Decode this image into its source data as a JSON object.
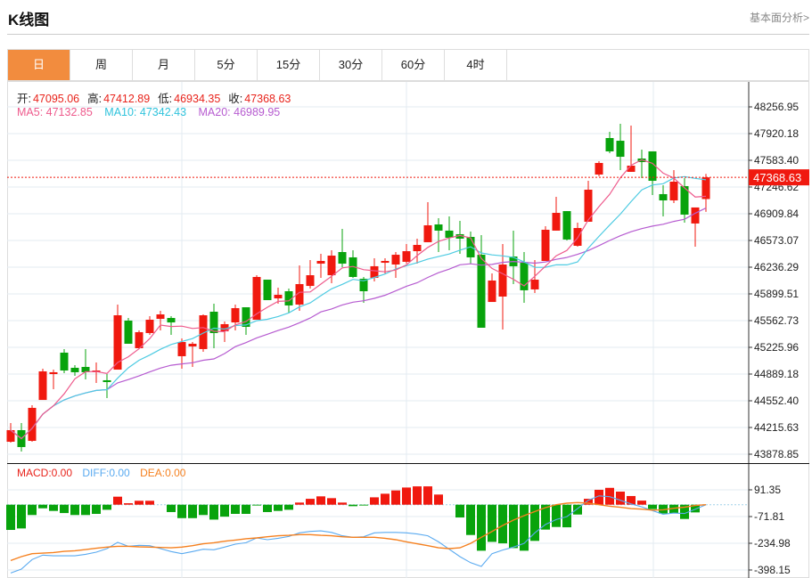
{
  "header": {
    "title": "K线图",
    "more_link": "基本面分析>"
  },
  "tabs": [
    {
      "label": "日",
      "active": true
    },
    {
      "label": "周"
    },
    {
      "label": "月"
    },
    {
      "label": "5分"
    },
    {
      "label": "15分"
    },
    {
      "label": "30分"
    },
    {
      "label": "60分"
    },
    {
      "label": "4时"
    }
  ],
  "ohlc_info": {
    "open_label": "开:",
    "open": "47095.06",
    "high_label": "高:",
    "high": "47412.89",
    "low_label": "低:",
    "low": "46934.35",
    "close_label": "收:",
    "close": "47368.63"
  },
  "ma_info": {
    "ma5": "MA5: 47132.85",
    "ma10": "MA10: 47342.43",
    "ma20": "MA20: 46989.95"
  },
  "macd_info": {
    "macd": "MACD:0.00",
    "diff": "DIFF:0.00",
    "dea": "DEA:0.00"
  },
  "colors": {
    "up": "#f0190f",
    "down": "#08a30c",
    "ma5": "#ee5a8c",
    "ma10": "#4ecbe2",
    "ma20": "#b65bd0",
    "diff": "#5aaaf0",
    "dea": "#f5801f",
    "accent": "#f28c3e"
  },
  "chart_data": {
    "type": "candlestick",
    "current_price": "47368.63",
    "price_ticks": [
      "48256.95",
      "47920.18",
      "47583.40",
      "47246.62",
      "46909.84",
      "46573.07",
      "46236.29",
      "45899.51",
      "45562.73",
      "45225.96",
      "44889.18",
      "44552.40",
      "44215.63",
      "43878.85"
    ],
    "price_range": [
      43878.85,
      48256.95
    ],
    "macd_ticks": [
      "91.35",
      "-71.81",
      "-234.98",
      "-398.15"
    ],
    "candles": [
      [
        44036,
        44272,
        44025,
        44182
      ],
      [
        44182,
        44272,
        43913,
        43969
      ],
      [
        44047,
        44496,
        44036,
        44463
      ],
      [
        44563,
        44957,
        44563,
        44923
      ],
      [
        44889,
        44945,
        44698,
        44912
      ],
      [
        45159,
        45204,
        44900,
        44934
      ],
      [
        44968,
        45001,
        44867,
        44912
      ],
      [
        44979,
        45204,
        44822,
        44912
      ],
      [
        44912,
        45035,
        44777,
        44934
      ],
      [
        44811,
        44889,
        44586,
        44788
      ],
      [
        44945,
        45765,
        44945,
        45630
      ],
      [
        45563,
        45596,
        45271,
        45271
      ],
      [
        45215,
        45439,
        45215,
        45417
      ],
      [
        45406,
        45619,
        45383,
        45574
      ],
      [
        45585,
        45686,
        45439,
        45641
      ],
      [
        45596,
        45619,
        45383,
        45540
      ],
      [
        45114,
        45338,
        44957,
        45293
      ],
      [
        45237,
        45293,
        44979,
        45271
      ],
      [
        45204,
        45641,
        45170,
        45630
      ],
      [
        45675,
        45776,
        45215,
        45406
      ],
      [
        45428,
        45552,
        45293,
        45518
      ],
      [
        45540,
        45765,
        45439,
        45720
      ],
      [
        45731,
        45731,
        45383,
        45484
      ],
      [
        45574,
        46135,
        45574,
        46113
      ],
      [
        46079,
        46079,
        45821,
        45821
      ],
      [
        45843,
        45978,
        45776,
        45888
      ],
      [
        45933,
        45967,
        45664,
        45754
      ],
      [
        45765,
        46259,
        45686,
        46023
      ],
      [
        46000,
        46326,
        45967,
        46135
      ],
      [
        46281,
        46405,
        46102,
        46315
      ],
      [
        46135,
        46450,
        46034,
        46382
      ],
      [
        46427,
        46719,
        46236,
        46281
      ],
      [
        46360,
        46450,
        46102,
        46113
      ],
      [
        46090,
        46113,
        45787,
        45933
      ],
      [
        46102,
        46349,
        46057,
        46248
      ],
      [
        46292,
        46349,
        46158,
        46315
      ],
      [
        46270,
        46427,
        46102,
        46393
      ],
      [
        46304,
        46528,
        46281,
        46438
      ],
      [
        46438,
        46596,
        46281,
        46517
      ],
      [
        46551,
        47056,
        46551,
        46764
      ],
      [
        46775,
        46854,
        46427,
        46697
      ],
      [
        46697,
        46876,
        46450,
        46607
      ],
      [
        46652,
        46820,
        46405,
        46596
      ],
      [
        46618,
        46685,
        46281,
        46360
      ],
      [
        46393,
        46641,
        45473,
        45473
      ],
      [
        45798,
        46158,
        45798,
        46068
      ],
      [
        45866,
        46528,
        45450,
        46270
      ],
      [
        46371,
        46697,
        46023,
        46248
      ],
      [
        46292,
        46427,
        45787,
        45945
      ],
      [
        45956,
        46326,
        45911,
        46079
      ],
      [
        46315,
        46753,
        46315,
        46708
      ],
      [
        46697,
        47123,
        46697,
        46921
      ],
      [
        46943,
        46943,
        46573,
        46585
      ],
      [
        46506,
        46798,
        46495,
        46730
      ],
      [
        46809,
        47325,
        46809,
        47213
      ],
      [
        47404,
        47572,
        47381,
        47550
      ],
      [
        47864,
        47943,
        47673,
        47696
      ],
      [
        47830,
        48044,
        47460,
        47628
      ],
      [
        47438,
        48021,
        47438,
        47516
      ],
      [
        47606,
        47718,
        47359,
        47561
      ],
      [
        47696,
        47696,
        47146,
        47325
      ],
      [
        47157,
        47269,
        46876,
        47078
      ],
      [
        47078,
        47460,
        47044,
        47314
      ],
      [
        47258,
        47359,
        46798,
        46899
      ],
      [
        46787,
        46989,
        46495,
        46989
      ],
      [
        47095.06,
        47412.89,
        46934.35,
        47368.63
      ]
    ],
    "macd_hist": [
      -154,
      -145,
      -63,
      -22,
      -38,
      -51,
      -63,
      -63,
      -56,
      -31,
      49,
      9,
      24,
      24,
      0,
      -45,
      -82,
      -82,
      -63,
      -91,
      -73,
      -56,
      -56,
      -5,
      -45,
      -38,
      -31,
      13,
      36,
      51,
      40,
      13,
      -9,
      -5,
      45,
      67,
      87,
      105,
      112,
      112,
      62,
      0,
      -78,
      -185,
      -281,
      -227,
      -236,
      -265,
      -281,
      -221,
      -152,
      -136,
      -138,
      -60,
      36,
      91,
      103,
      80,
      53,
      25,
      -27,
      -54,
      -51,
      -87,
      -47,
      0
    ],
    "diff": [
      -417,
      -393,
      -335,
      -308,
      -312,
      -312,
      -312,
      -303,
      -290,
      -268,
      -230,
      -254,
      -248,
      -250,
      -268,
      -286,
      -299,
      -286,
      -272,
      -275,
      -259,
      -241,
      -232,
      -203,
      -214,
      -205,
      -194,
      -172,
      -163,
      -160,
      -169,
      -190,
      -199,
      -196,
      -172,
      -169,
      -169,
      -172,
      -179,
      -190,
      -227,
      -272,
      -317,
      -354,
      -377,
      -299,
      -277,
      -259,
      -236,
      -172,
      -121,
      -91,
      -73,
      -24,
      27,
      54,
      49,
      27,
      5,
      -13,
      -36,
      -58,
      -51,
      -54,
      -27,
      0
    ],
    "dea": [
      -341,
      -317,
      -299,
      -296,
      -292,
      -285,
      -281,
      -274,
      -266,
      -259,
      -254,
      -254,
      -257,
      -259,
      -261,
      -263,
      -259,
      -250,
      -239,
      -232,
      -223,
      -216,
      -208,
      -203,
      -196,
      -190,
      -187,
      -183,
      -183,
      -187,
      -190,
      -196,
      -199,
      -199,
      -199,
      -205,
      -214,
      -227,
      -239,
      -250,
      -263,
      -268,
      -263,
      -236,
      -199,
      -163,
      -127,
      -94,
      -67,
      -42,
      -18,
      0,
      9,
      13,
      9,
      0,
      -9,
      -16,
      -24,
      -27,
      -33,
      -31,
      -22,
      -15,
      -5,
      0
    ]
  }
}
